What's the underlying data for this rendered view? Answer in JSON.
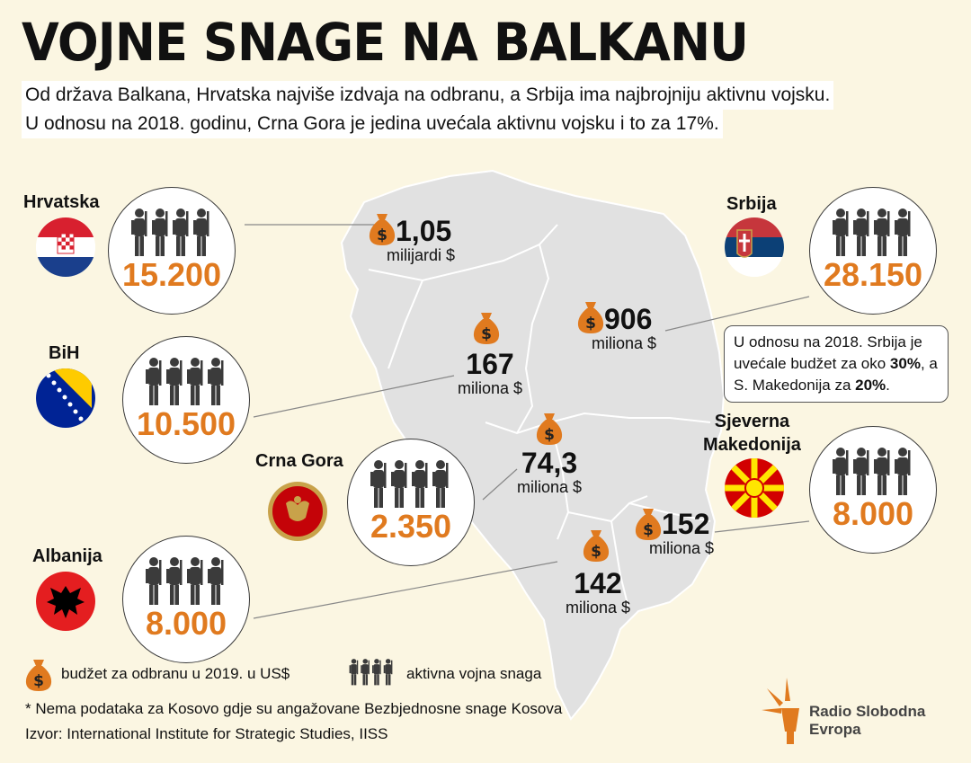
{
  "header": {
    "title": "VOJNE SNAGE NA BALKANU",
    "subtitle_line1": "Od država Balkana, Hrvatska najviše izdvaja na odbranu, a Srbija ima najbrojniju aktivnu vojsku.",
    "subtitle_line2": "U odnosu na 2018. godinu, Crna Gora je jedina uvećala aktivnu vojsku i to za 17%."
  },
  "countries": [
    {
      "name": "Hrvatska",
      "troops": "15.200",
      "budget_value": "1,05",
      "budget_unit": "milijardi $",
      "flag": "croatia-flag"
    },
    {
      "name": "Srbija",
      "troops": "28.150",
      "budget_value": "906",
      "budget_unit": "miliona $",
      "flag": "serbia-flag"
    },
    {
      "name": "BiH",
      "troops": "10.500",
      "budget_value": "167",
      "budget_unit": "miliona $",
      "flag": "bih-flag"
    },
    {
      "name": "Crna Gora",
      "troops": "2.350",
      "budget_value": "74,3",
      "budget_unit": "miliona $",
      "flag": "montenegro-flag"
    },
    {
      "name_line1": "Sjeverna",
      "name_line2": "Makedonija",
      "troops": "8.000",
      "budget_value": "152",
      "budget_unit": "miliona $",
      "flag": "north-macedonia-flag"
    },
    {
      "name": "Albanija",
      "troops": "8.000",
      "budget_value": "142",
      "budget_unit": "miliona $",
      "flag": "albania-flag"
    }
  ],
  "note": {
    "text1": "U odnosu na 2018. Srbija je uvećale budžet za oko ",
    "bold1": "30%",
    "text2": ", a S. Makedonija za ",
    "bold2": "20%",
    "text3": "."
  },
  "legend": {
    "budget_label": "budžet za odbranu u 2019. u US$",
    "troops_label": "aktivna vojna snaga",
    "budget_icon": "money-bag-icon",
    "troops_icon": "soldiers-icon"
  },
  "footnote": {
    "kosovo": "* Nema podataka za Kosovo gdje su angažovane Bezbjednosne snage Kosova",
    "source": "Izvor: International Institute for Strategic Studies, IISS"
  },
  "logo": {
    "line1": "Radio Slobodna",
    "line2": "Evropa"
  },
  "colors": {
    "accent": "#e07a1f",
    "map": "#e3e3e3",
    "background": "#fbf6e2"
  }
}
